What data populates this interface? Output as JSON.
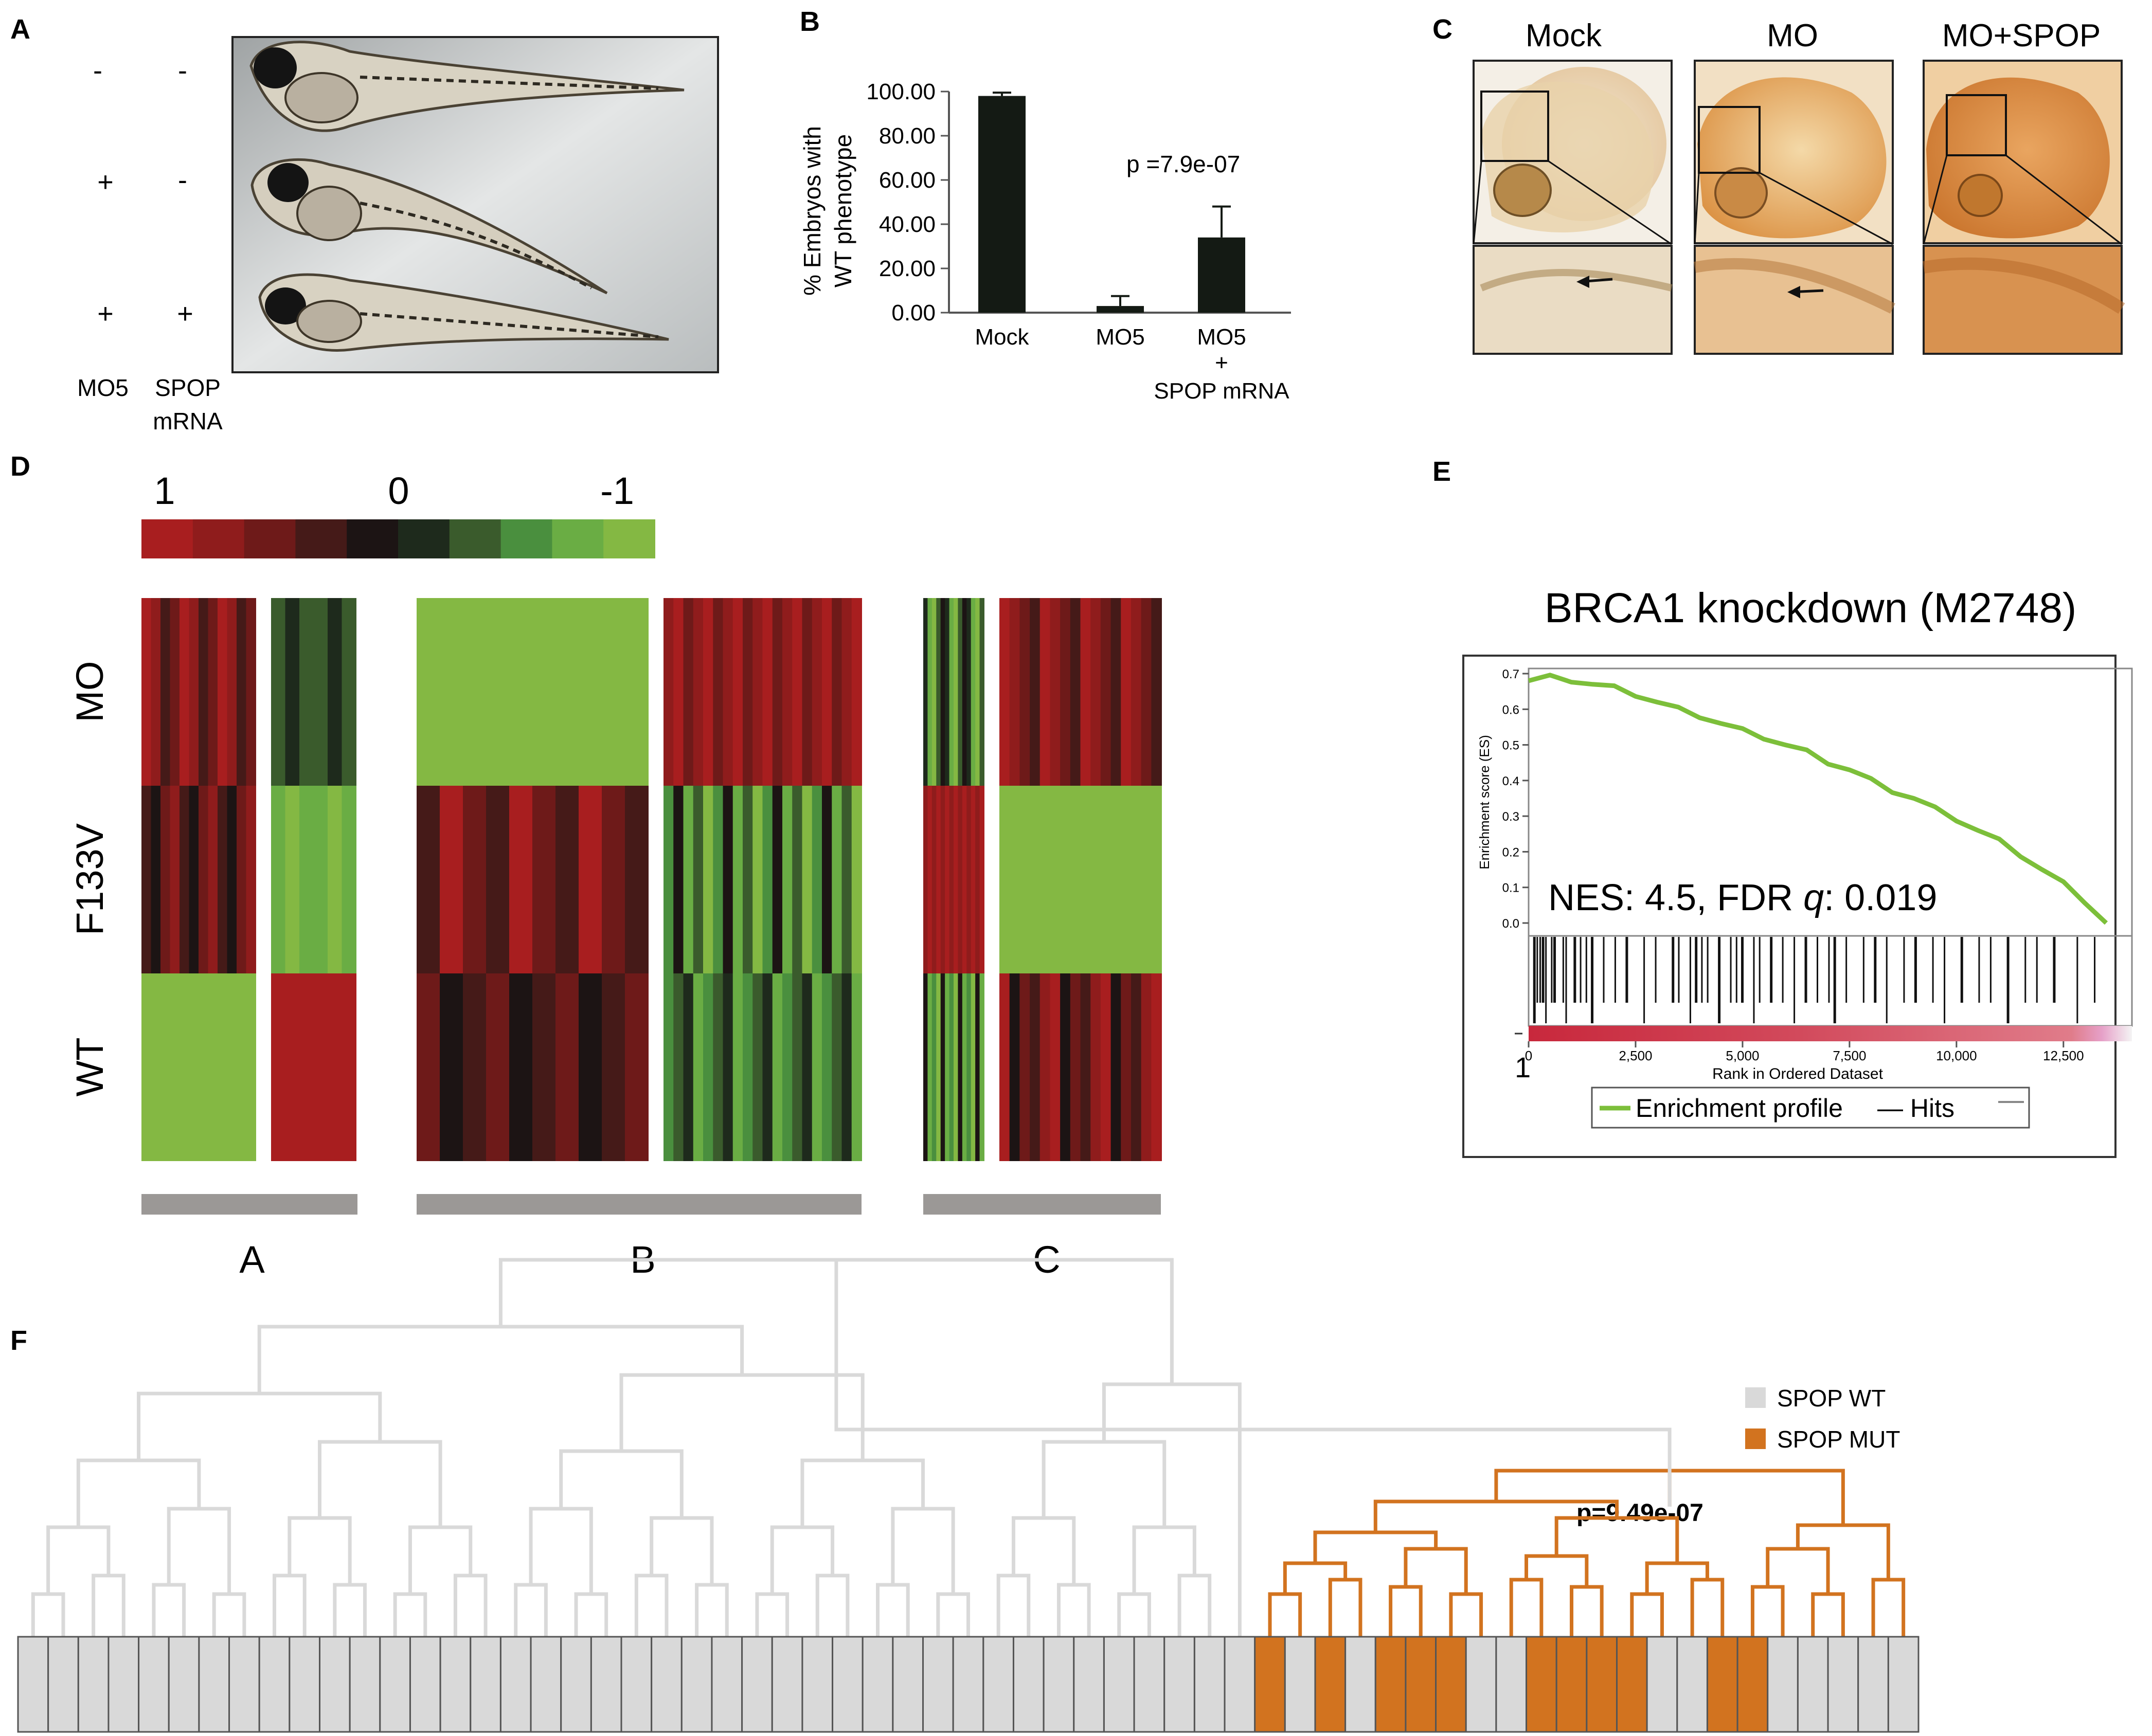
{
  "panels": {
    "A": "A",
    "B": "B",
    "C": "C",
    "D": "D",
    "E": "E",
    "F": "F"
  },
  "panelA": {
    "rows": [
      {
        "mo5": "-",
        "spop": "-"
      },
      {
        "mo5": "+",
        "spop": "-"
      },
      {
        "mo5": "+",
        "spop": "+"
      }
    ],
    "xlabel_mo5": "MO5",
    "xlabel_spop_line1": "SPOP",
    "xlabel_spop_line2": "mRNA"
  },
  "panelB": {
    "ylabel_line1": "% Embryos with",
    "ylabel_line2": "WT phenotype",
    "pvalue": "p =7.9e-07",
    "bar_color": "#141a14"
  },
  "panelC": {
    "titles": [
      "Mock",
      "MO",
      "MO+SPOP"
    ]
  },
  "panelD": {
    "scale_labels": [
      "1",
      "0",
      "-1"
    ],
    "scale_colors": [
      "#a81e1f",
      "#8f1c1c",
      "#6e1a19",
      "#451a18",
      "#1c1414",
      "#1e2a1c",
      "#3a5b2c",
      "#4a8f3e",
      "#6aad44",
      "#84b843"
    ],
    "row_labels": [
      "MO",
      "F133V",
      "WT"
    ],
    "group_labels": [
      "A",
      "B",
      "C"
    ]
  },
  "panelE": {
    "title": "BRCA1 knockdown (M2748)",
    "ylabel": "Enrichment score (ES)",
    "xlabel": "Rank in Ordered Dataset",
    "stats_prefix": "NES: 4.5, FDR ",
    "stats_q": "q",
    "stats_suffix": ": 0.019",
    "legend_profile": "Enrichment profile",
    "legend_hits": "— Hits",
    "y_tick_0": "0.0",
    "x_tick_1": "1",
    "curve_color": "#7cbf3a"
  },
  "panelF": {
    "legend_wt": "SPOP WT",
    "legend_mut": "SPOP MUT",
    "pvalue": "p=9.49e-07",
    "wt_color": "#d9d9d9",
    "mut_color": "#d2731f"
  },
  "chart_data": [
    {
      "type": "bar",
      "categories": [
        "Mock",
        "MO5",
        "MO5 + SPOP mRNA"
      ],
      "values": [
        98,
        3,
        34
      ],
      "errors": [
        1.5,
        4.5,
        14
      ],
      "ylabel": "% Embryos with WT phenotype",
      "ylim": [
        0,
        100
      ],
      "yticks": [
        "0.00",
        "20.00",
        "40.00",
        "60.00",
        "80.00",
        "100.00"
      ],
      "annotation": "p =7.9e-07"
    },
    {
      "type": "line",
      "title": "BRCA1 knockdown (M2748)",
      "xlabel": "Rank in Ordered Dataset",
      "ylabel": "Enrichment score (ES)",
      "x": [
        0,
        500,
        1000,
        1500,
        2000,
        2500,
        3000,
        3500,
        4000,
        4500,
        5000,
        5500,
        6000,
        6500,
        7000,
        7500,
        8000,
        8500,
        9000,
        9500,
        10000,
        10500,
        11000,
        11500,
        12000,
        12500,
        13000,
        13500
      ],
      "series": [
        {
          "values": [
            0.68,
            0.69,
            0.68,
            0.67,
            0.66,
            0.64,
            0.62,
            0.6,
            0.58,
            0.56,
            0.54,
            0.52,
            0.5,
            0.48,
            0.45,
            0.43,
            0.4,
            0.37,
            0.35,
            0.32,
            0.29,
            0.26,
            0.23,
            0.19,
            0.15,
            0.11,
            0.06,
            0.0
          ]
        }
      ],
      "xticks": [
        "0",
        "2,500",
        "5,000",
        "7,500",
        "10,000",
        "12,500"
      ],
      "yticks": [
        "0.0",
        "0.1",
        "0.2",
        "0.3",
        "0.4",
        "0.5",
        "0.6",
        "0.7"
      ],
      "ylim": [
        0,
        0.7
      ],
      "xlim": [
        0,
        13500
      ],
      "annotation": "NES: 4.5, FDR q: 0.019"
    }
  ]
}
